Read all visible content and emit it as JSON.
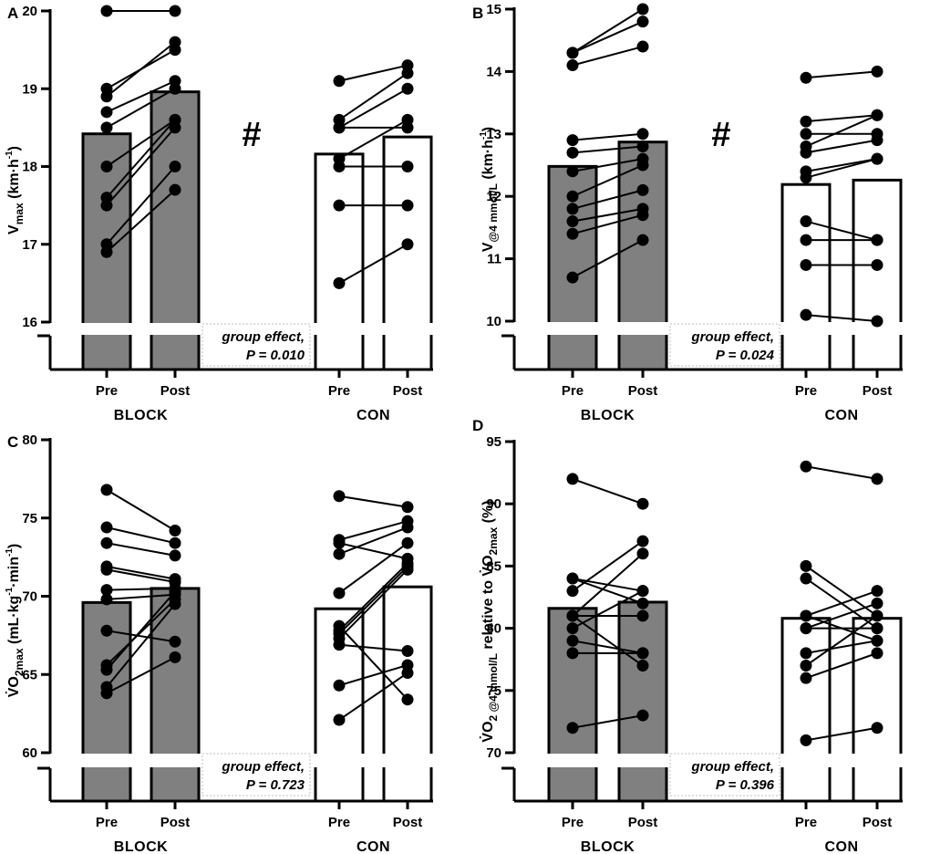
{
  "figure": {
    "groups": [
      "BLOCK",
      "CON"
    ],
    "conditions": [
      "Pre",
      "Post"
    ]
  },
  "colors": {
    "block_fill": "#808080",
    "con_fill": "#ffffff",
    "ink": "#000000",
    "note_border": "#bdbdbd"
  },
  "chart_data": [
    {
      "panel": "A",
      "type": "bar",
      "ylabel": {
        "main": "V",
        "sub": "max",
        "units": " (km·h",
        "sup": "-1",
        "close": ")"
      },
      "ylim": [
        16,
        20
      ],
      "yticks": [
        16,
        17,
        18,
        19,
        20
      ],
      "categories": [
        "Pre",
        "Post",
        "Pre",
        "Post"
      ],
      "groups": [
        "BLOCK",
        "CON"
      ],
      "series": [
        {
          "name": "BLOCK",
          "means": [
            18.42,
            18.96
          ],
          "pairs": [
            [
              20.0,
              20.0
            ],
            [
              18.9,
              19.6
            ],
            [
              19.0,
              19.5
            ],
            [
              18.7,
              19.1
            ],
            [
              18.5,
              19.0
            ],
            [
              18.0,
              18.6
            ],
            [
              17.6,
              18.6
            ],
            [
              17.5,
              18.5
            ],
            [
              17.0,
              18.0
            ],
            [
              16.9,
              17.7
            ]
          ]
        },
        {
          "name": "CON",
          "means": [
            18.16,
            18.38
          ],
          "pairs": [
            [
              19.1,
              19.3
            ],
            [
              18.6,
              19.2
            ],
            [
              18.5,
              19.0
            ],
            [
              18.5,
              18.5
            ],
            [
              18.1,
              18.6
            ],
            [
              18.0,
              18.0
            ],
            [
              17.5,
              17.5
            ],
            [
              16.5,
              17.0
            ]
          ]
        }
      ],
      "annotation_symbol": "#",
      "note": {
        "line1": "group effect,",
        "line2": "P = 0.010"
      }
    },
    {
      "panel": "B",
      "type": "bar",
      "ylabel": {
        "main": "V",
        "sub": "@4 mmol/L",
        "units": " (km·h",
        "sup": "-1",
        "close": ")"
      },
      "ylim": [
        10,
        15
      ],
      "yticks": [
        10,
        11,
        12,
        13,
        14,
        15
      ],
      "categories": [
        "Pre",
        "Post",
        "Pre",
        "Post"
      ],
      "groups": [
        "BLOCK",
        "CON"
      ],
      "series": [
        {
          "name": "BLOCK",
          "means": [
            12.48,
            12.87
          ],
          "pairs": [
            [
              14.3,
              15.0
            ],
            [
              14.3,
              14.8
            ],
            [
              14.1,
              14.4
            ],
            [
              12.9,
              13.0
            ],
            [
              12.7,
              12.8
            ],
            [
              12.4,
              12.6
            ],
            [
              12.0,
              12.5
            ],
            [
              11.8,
              12.1
            ],
            [
              11.6,
              11.8
            ],
            [
              11.4,
              11.7
            ],
            [
              10.7,
              11.3
            ]
          ]
        },
        {
          "name": "CON",
          "means": [
            12.19,
            12.26
          ],
          "pairs": [
            [
              13.9,
              14.0
            ],
            [
              13.2,
              13.3
            ],
            [
              13.0,
              13.0
            ],
            [
              12.8,
              13.3
            ],
            [
              12.7,
              12.9
            ],
            [
              12.4,
              12.6
            ],
            [
              12.3,
              12.6
            ],
            [
              11.6,
              11.3
            ],
            [
              11.3,
              11.3
            ],
            [
              10.9,
              10.9
            ],
            [
              10.1,
              10.0
            ]
          ]
        }
      ],
      "annotation_symbol": "#",
      "note": {
        "line1": "group effect,",
        "line2": "P = 0.024"
      }
    },
    {
      "panel": "C",
      "type": "bar",
      "ylabel": {
        "main": "V̇O",
        "sub": "2max",
        "units": " (mL·kg",
        "sup": "-1",
        "units2": "·min",
        "sup2": "-1",
        "close": ")"
      },
      "ylim": [
        60,
        80
      ],
      "yticks": [
        60,
        65,
        70,
        75,
        80
      ],
      "categories": [
        "Pre",
        "Post",
        "Pre",
        "Post"
      ],
      "groups": [
        "BLOCK",
        "CON"
      ],
      "series": [
        {
          "name": "BLOCK",
          "means": [
            69.6,
            70.5
          ],
          "pairs": [
            [
              76.8,
              74.2
            ],
            [
              74.4,
              73.4
            ],
            [
              73.4,
              72.6
            ],
            [
              71.9,
              71.1
            ],
            [
              71.7,
              70.9
            ],
            [
              70.4,
              70.5
            ],
            [
              69.8,
              70.1
            ],
            [
              67.8,
              67.1
            ],
            [
              65.6,
              69.8
            ],
            [
              65.3,
              70.3
            ],
            [
              64.2,
              69.5
            ],
            [
              63.8,
              66.1
            ]
          ]
        },
        {
          "name": "CON",
          "means": [
            69.2,
            70.6
          ],
          "pairs": [
            [
              76.4,
              75.7
            ],
            [
              73.6,
              74.8
            ],
            [
              73.4,
              72.4
            ],
            [
              72.7,
              74.4
            ],
            [
              70.2,
              73.4
            ],
            [
              67.8,
              72.1
            ],
            [
              67.6,
              71.9
            ],
            [
              67.3,
              71.7
            ],
            [
              66.9,
              66.5
            ],
            [
              64.3,
              65.6
            ],
            [
              62.1,
              65.1
            ],
            [
              68.1,
              63.4
            ]
          ]
        }
      ],
      "note": {
        "line1": "group effect,",
        "line2": "P = 0.723"
      }
    },
    {
      "panel": "D",
      "type": "bar",
      "ylabel": {
        "main": "V̇O",
        "sub": "2 @4 mmol/L",
        "units": " relative to V̇O",
        "sub2": "2max",
        "close": " (%)"
      },
      "ylim": [
        70,
        95
      ],
      "yticks": [
        70,
        75,
        80,
        85,
        90,
        95
      ],
      "categories": [
        "Pre",
        "Post",
        "Pre",
        "Post"
      ],
      "groups": [
        "BLOCK",
        "CON"
      ],
      "series": [
        {
          "name": "BLOCK",
          "means": [
            81.6,
            82.1
          ],
          "pairs": [
            [
              92,
              90
            ],
            [
              84,
              83
            ],
            [
              84,
              82
            ],
            [
              83,
              87
            ],
            [
              81,
              86
            ],
            [
              81,
              81
            ],
            [
              80,
              83
            ],
            [
              79,
              78
            ],
            [
              78,
              78
            ],
            [
              72,
              73
            ],
            [
              81,
              77
            ]
          ]
        },
        {
          "name": "CON",
          "means": [
            80.8,
            80.8
          ],
          "pairs": [
            [
              93,
              92
            ],
            [
              85,
              81
            ],
            [
              84,
              80
            ],
            [
              81,
              83
            ],
            [
              81,
              79
            ],
            [
              80,
              82
            ],
            [
              80,
              80
            ],
            [
              78,
              79
            ],
            [
              77,
              81
            ],
            [
              76,
              78
            ],
            [
              71,
              72
            ]
          ]
        }
      ],
      "note": {
        "line1": "group effect,",
        "line2": "P = 0.396"
      }
    }
  ]
}
